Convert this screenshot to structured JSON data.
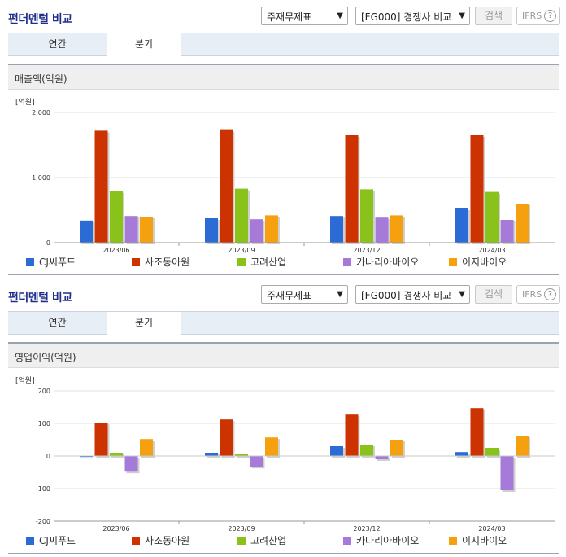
{
  "sections": [
    {
      "title": "펀더멘털 비교",
      "select_statement": "주재무제표",
      "select_compare": "[FG000] 경쟁사 비교",
      "search_label": "검색",
      "ifrs_label": "IFRS",
      "help_label": "?",
      "tabs": [
        {
          "label": "연간",
          "active": false
        },
        {
          "label": "분기",
          "active": true
        }
      ],
      "chart_title": "매출액(억원)",
      "unit_label": "[억원]"
    },
    {
      "title": "펀더멘털 비교",
      "select_statement": "주재무제표",
      "select_compare": "[FG000] 경쟁사 비교",
      "search_label": "검색",
      "ifrs_label": "IFRS",
      "help_label": "?",
      "tabs": [
        {
          "label": "연간",
          "active": false
        },
        {
          "label": "분기",
          "active": true
        }
      ],
      "chart_title": "영업이익(억원)",
      "unit_label": "[억원]"
    }
  ],
  "colors": {
    "CJ씨푸드": "#2a6bd6",
    "사조동아원": "#cc3300",
    "고려산업": "#88c21a",
    "카나리아바이오": "#a57ad8",
    "이지바이오": "#f5a10f"
  },
  "chart_data": [
    {
      "type": "bar",
      "title": "매출액(억원)",
      "ylabel": "[억원]",
      "categories": [
        "2023/06",
        "2023/09",
        "2023/12",
        "2024/03"
      ],
      "ylim": [
        0,
        2000
      ],
      "yticks": [
        0,
        1000,
        2000
      ],
      "ytick_labels": [
        "0",
        "1,000",
        "2,000"
      ],
      "grid": true,
      "legend": "bottom",
      "series": [
        {
          "name": "CJ씨푸드",
          "values": [
            340,
            375,
            410,
            525
          ]
        },
        {
          "name": "사조동아원",
          "values": [
            1720,
            1730,
            1650,
            1650
          ]
        },
        {
          "name": "고려산업",
          "values": [
            790,
            830,
            820,
            780
          ]
        },
        {
          "name": "카나리아바이오",
          "values": [
            410,
            360,
            385,
            350
          ]
        },
        {
          "name": "이지바이오",
          "values": [
            400,
            420,
            420,
            600
          ]
        }
      ]
    },
    {
      "type": "bar",
      "title": "영업이익(억원)",
      "ylabel": "[억원]",
      "categories": [
        "2023/06",
        "2023/09",
        "2023/12",
        "2024/03"
      ],
      "ylim": [
        -200,
        200
      ],
      "yticks": [
        -200,
        -100,
        0,
        100,
        200
      ],
      "ytick_labels": [
        "-200",
        "-100",
        "0",
        "100",
        "200"
      ],
      "grid": true,
      "legend": "bottom",
      "series": [
        {
          "name": "CJ씨푸드",
          "values": [
            -3,
            10,
            30,
            12
          ]
        },
        {
          "name": "사조동아원",
          "values": [
            102,
            112,
            127,
            147
          ]
        },
        {
          "name": "고려산업",
          "values": [
            10,
            5,
            35,
            25
          ]
        },
        {
          "name": "카나리아바이오",
          "values": [
            -48,
            -33,
            -10,
            -105
          ]
        },
        {
          "name": "이지바이오",
          "values": [
            52,
            57,
            50,
            62
          ]
        }
      ]
    }
  ]
}
